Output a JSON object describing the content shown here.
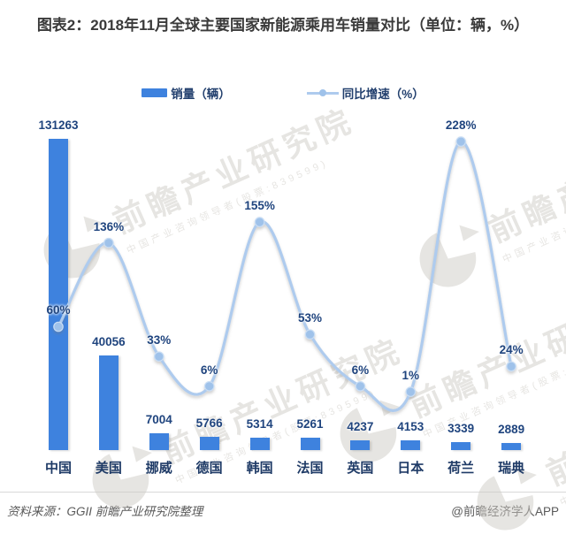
{
  "title": "图表2：2018年11月全球主要国家新能源乘用车销量对比（单位：辆，%）",
  "legend": {
    "items": [
      {
        "label": "销量（辆）",
        "type": "bar"
      },
      {
        "label": "同比增速（%）",
        "type": "line"
      }
    ]
  },
  "footer": {
    "source_note": "资料来源：GGII 前瞻产业研究院整理",
    "credit": "@前瞻经济学人APP"
  },
  "watermark": {
    "brand": "前瞻产业研究院",
    "subtitle": "中国产业咨询领导者(股票:839599)"
  },
  "colors": {
    "bar": "#3e82de",
    "line": "#aecbee",
    "dot": "#9fc2ea",
    "dot_stroke": "#c9ddf4",
    "label_navy": "#1f447e",
    "category_navy": "#1e3a66",
    "title_gray": "#3a3a3a",
    "footer_gray": "#595959",
    "watermark_gray": "#cfccc6"
  },
  "chart_data": {
    "type": "bar",
    "title": "2018年11月全球主要国家新能源乘用车销量对比",
    "categories": [
      "中国",
      "美国",
      "挪威",
      "德国",
      "韩国",
      "法国",
      "英国",
      "日本",
      "荷兰",
      "瑞典"
    ],
    "series": [
      {
        "name": "销量（辆）",
        "type": "bar",
        "unit": "辆",
        "values": [
          131263,
          40056,
          7004,
          5766,
          5314,
          5261,
          4237,
          4153,
          3339,
          2889
        ]
      },
      {
        "name": "同比增速（%）",
        "type": "line",
        "unit": "%",
        "values": [
          60,
          136,
          33,
          6,
          155,
          53,
          6,
          1,
          228,
          24
        ]
      }
    ],
    "xlabel": "",
    "ylabel": "",
    "legend_position": "top",
    "grid": false,
    "data_labels": true
  }
}
